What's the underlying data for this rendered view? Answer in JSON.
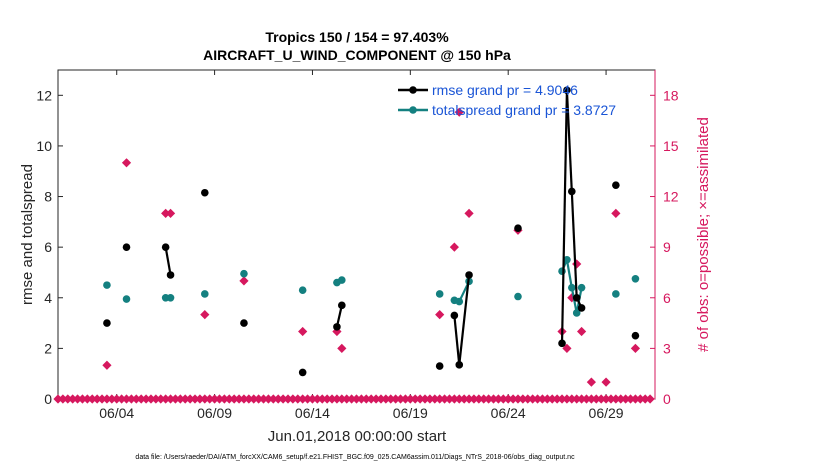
{
  "chart_data": {
    "type": "line",
    "title": "Tropics 150 / 154 = 97.403%",
    "subtitle": "AIRCRAFT_U_WIND_COMPONENT @ 150 hPa",
    "xlabel": "Jun.01,2018 00:00:00 start",
    "ylabel": "rmse and totalspread",
    "ylabel_right": "# of obs: o=possible; ×=assimilated",
    "xlim": [
      0,
      30.5
    ],
    "ylim": [
      0,
      13
    ],
    "ylim_right": [
      0,
      19.5
    ],
    "x_tick_values": [
      3,
      8,
      13,
      18,
      23,
      28
    ],
    "x_ticks": [
      "06/04",
      "06/09",
      "06/14",
      "06/19",
      "06/24",
      "06/29"
    ],
    "y_ticks": [
      0,
      2,
      4,
      6,
      8,
      10,
      12
    ],
    "y_ticks_right": [
      0,
      3,
      6,
      9,
      12,
      15,
      18
    ],
    "footnote": "data file: /Users/raeder/DAI/ATM_forcXX/CAM6_setup/f.e21.FHIST_BGC.f09_025.CAM6assim.011/Diags_NTrS_2018-06/obs_diag_output.nc",
    "colors": {
      "rmse": "#000000",
      "spread": "#148080",
      "obs": "#d6185e",
      "legend_text": "#1a55d6"
    },
    "series": [
      {
        "name": "rmse",
        "legend": "rmse grand pr = 4.9046",
        "values": [
          [
            2.5,
            3.0
          ],
          [
            3.5,
            6.0
          ],
          [
            5.5,
            6.0
          ],
          [
            5.75,
            4.9
          ],
          [
            7.5,
            8.15
          ],
          [
            9.5,
            3.0
          ],
          [
            12.5,
            1.05
          ],
          [
            14.25,
            2.85
          ],
          [
            14.5,
            3.7
          ],
          [
            19.5,
            1.3
          ],
          [
            20.25,
            3.3
          ],
          [
            20.5,
            1.35
          ],
          [
            21.0,
            4.9
          ],
          [
            23.5,
            6.75
          ],
          [
            25.75,
            2.2
          ],
          [
            26.0,
            12.2
          ],
          [
            26.25,
            8.2
          ],
          [
            26.5,
            4.0
          ],
          [
            26.75,
            3.6
          ],
          [
            28.5,
            8.45
          ],
          [
            29.5,
            2.5
          ]
        ]
      },
      {
        "name": "totalspread",
        "legend": "totalspread grand pr = 3.8727",
        "values": [
          [
            2.5,
            4.5
          ],
          [
            3.5,
            3.95
          ],
          [
            5.5,
            4.0
          ],
          [
            5.75,
            4.0
          ],
          [
            7.5,
            4.15
          ],
          [
            9.5,
            4.95
          ],
          [
            12.5,
            4.3
          ],
          [
            14.25,
            4.6
          ],
          [
            14.5,
            4.7
          ],
          [
            19.5,
            4.15
          ],
          [
            20.25,
            3.9
          ],
          [
            20.5,
            3.85
          ],
          [
            21.0,
            4.65
          ],
          [
            23.5,
            4.05
          ],
          [
            25.75,
            5.05
          ],
          [
            26.0,
            5.5
          ],
          [
            26.25,
            4.4
          ],
          [
            26.5,
            3.4
          ],
          [
            26.75,
            4.4
          ],
          [
            28.5,
            4.15
          ],
          [
            29.5,
            4.75
          ]
        ]
      },
      {
        "name": "obs_possible",
        "values": [
          [
            2.5,
            2
          ],
          [
            3.5,
            14
          ],
          [
            5.5,
            11
          ],
          [
            5.75,
            11
          ],
          [
            7.5,
            5
          ],
          [
            9.5,
            7
          ],
          [
            12.5,
            4
          ],
          [
            14.25,
            4
          ],
          [
            14.5,
            3
          ],
          [
            19.5,
            5
          ],
          [
            20.25,
            9
          ],
          [
            20.5,
            17
          ],
          [
            21.0,
            11
          ],
          [
            23.5,
            10
          ],
          [
            25.75,
            4
          ],
          [
            26.0,
            3
          ],
          [
            26.25,
            6
          ],
          [
            26.5,
            8
          ],
          [
            26.75,
            4
          ],
          [
            27.25,
            1
          ],
          [
            28.0,
            1
          ],
          [
            28.5,
            11
          ],
          [
            29.5,
            3
          ]
        ]
      }
    ],
    "zero_obs_days": [
      0,
      0.25,
      0.5,
      0.75,
      1,
      1.25,
      1.5,
      1.75,
      2,
      2.25,
      2.5,
      2.75,
      3,
      3.25,
      3.5,
      3.75,
      4,
      4.25,
      4.5,
      4.75,
      5,
      5.25,
      5.5,
      5.75,
      6,
      6.25,
      6.5,
      6.75,
      7,
      7.25,
      7.5,
      7.75,
      8,
      8.25,
      8.5,
      8.75,
      9,
      9.25,
      9.5,
      9.75,
      10,
      10.25,
      10.5,
      10.75,
      11,
      11.25,
      11.5,
      11.75,
      12,
      12.25,
      12.5,
      12.75,
      13,
      13.25,
      13.5,
      13.75,
      14,
      14.25,
      14.5,
      14.75,
      15,
      15.25,
      15.5,
      15.75,
      16,
      16.25,
      16.5,
      16.75,
      17,
      17.25,
      17.5,
      17.75,
      18,
      18.25,
      18.5,
      18.75,
      19,
      19.25,
      19.5,
      19.75,
      20,
      20.25,
      20.5,
      20.75,
      21,
      21.25,
      21.5,
      21.75,
      22,
      22.25,
      22.5,
      22.75,
      23,
      23.25,
      23.5,
      23.75,
      24,
      24.25,
      24.5,
      24.75,
      25,
      25.25,
      25.5,
      25.75,
      26,
      26.25,
      26.5,
      26.75,
      27,
      27.25,
      27.5,
      27.75,
      28,
      28.25,
      28.5,
      28.75,
      29,
      29.25,
      29.5,
      29.75,
      30,
      30.25
    ]
  }
}
